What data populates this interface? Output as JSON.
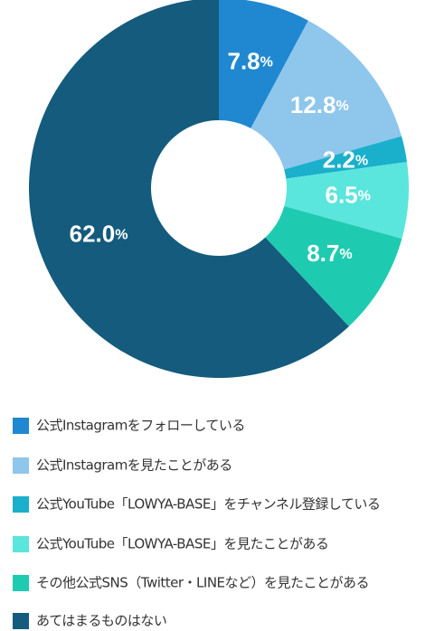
{
  "chart_data": {
    "type": "pie",
    "categories": [
      "公式Instagramをフォローしている",
      "公式Instagramを見たことがある",
      "公式YouTube「LOWYA-BASE」をチャンネル登録している",
      "公式YouTube「LOWYA-BASE」を見たことがある",
      "その他公式SNS（Twitter・LINEなど）を見たことがある",
      "あてはまるものはない"
    ],
    "values": [
      7.8,
      12.8,
      2.2,
      6.5,
      8.7,
      62.0
    ],
    "value_labels": [
      "7.8%",
      "12.8%",
      "2.2%",
      "6.5%",
      "8.7%",
      "62.0%"
    ],
    "colors": [
      "#1f88d0",
      "#8ec6ec",
      "#1ab0cb",
      "#5ae5dd",
      "#1fcbb0",
      "#145b7d"
    ]
  }
}
